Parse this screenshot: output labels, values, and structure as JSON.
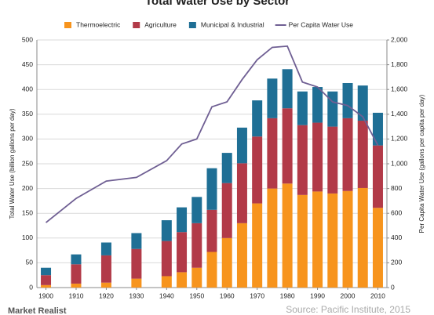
{
  "chart_data": {
    "type": "bar",
    "stacked": true,
    "title": "Total Water Use by Sector",
    "ylabel": "Total Water Use (billion gallons per day)",
    "y2label": "Per Capita Water Use (gallons per capita per day)",
    "source": "Source: Pacific Institute, 2015",
    "brand": "Market Realist",
    "x": [
      1900,
      1910,
      1920,
      1930,
      1940,
      1945,
      1950,
      1955,
      1960,
      1965,
      1970,
      1975,
      1980,
      1985,
      1990,
      1995,
      2000,
      2005,
      2010
    ],
    "xlim": [
      1897,
      2013
    ],
    "xticks": [
      1900,
      1910,
      1920,
      1930,
      1940,
      1950,
      1960,
      1970,
      1980,
      1990,
      2000,
      2010
    ],
    "ylim": [
      0,
      500
    ],
    "yticks": [
      0,
      50,
      100,
      150,
      200,
      250,
      300,
      350,
      400,
      450,
      500
    ],
    "y2lim": [
      0,
      2000
    ],
    "y2ticks": [
      0,
      200,
      400,
      600,
      800,
      {
        "value": 1000,
        "label": "1,000"
      },
      {
        "value": 1200,
        "label": "1,200"
      },
      {
        "value": 1400,
        "label": "1,400"
      },
      {
        "value": 1600,
        "label": "1,600"
      },
      {
        "value": 1800,
        "label": "1,800"
      },
      {
        "value": 2000,
        "label": "2,000"
      }
    ],
    "grid": true,
    "legend": "top",
    "series": [
      {
        "name": "Thermoelectric",
        "color": "#f7941d",
        "values": [
          5,
          8,
          10,
          18,
          23,
          31,
          40,
          72,
          100,
          130,
          170,
          200,
          210,
          187,
          194,
          190,
          195,
          201,
          161
        ]
      },
      {
        "name": "Agriculture",
        "color": "#b23a48",
        "values": [
          20,
          39,
          55,
          60,
          71,
          81,
          90,
          85,
          111,
          121,
          135,
          142,
          152,
          141,
          139,
          135,
          147,
          136,
          126
        ]
      },
      {
        "name": "Municipal & Industrial",
        "color": "#1f6f95",
        "values": [
          15,
          20,
          26,
          32,
          42,
          50,
          53,
          84,
          61,
          72,
          73,
          80,
          79,
          68,
          72,
          71,
          71,
          71,
          66
        ]
      },
      {
        "name": "Per Capita Water Use",
        "color": "#6f5f93",
        "type": "line",
        "axis": "y2",
        "values": [
          525,
          720,
          860,
          890,
          1025,
          1160,
          1200,
          1460,
          1500,
          1680,
          1840,
          1940,
          1950,
          1660,
          1620,
          1500,
          1470,
          1380,
          1150
        ]
      }
    ]
  }
}
